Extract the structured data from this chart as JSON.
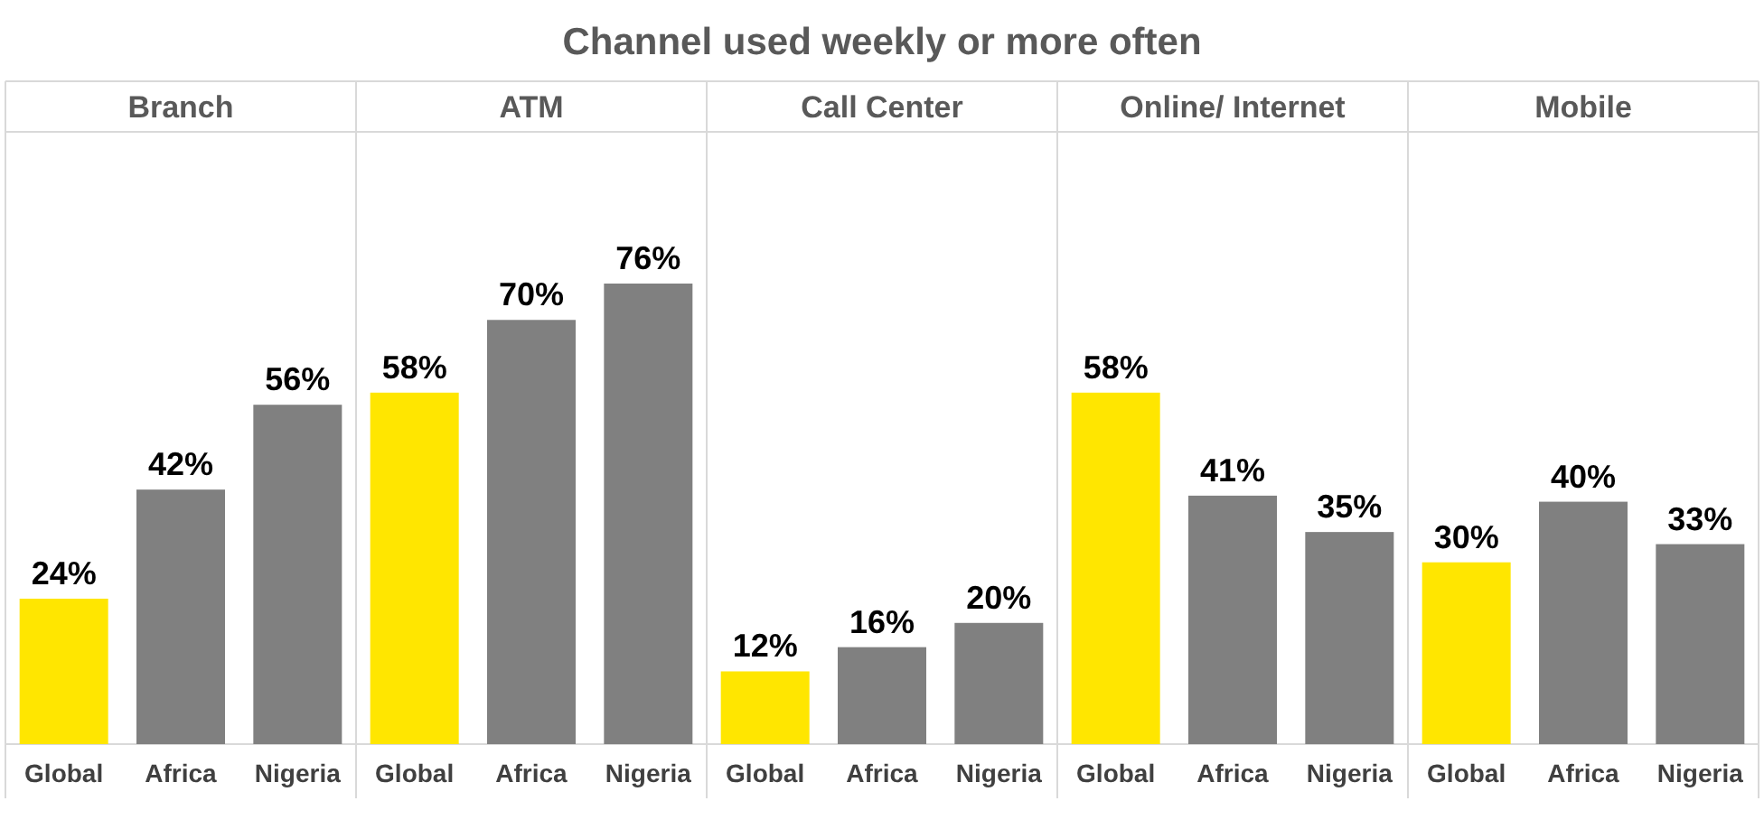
{
  "chart_data": {
    "type": "bar",
    "title": "Channel used weekly or more often",
    "annotations": [
      "Branch",
      "ATM",
      "Call Center",
      "Online/ Internet",
      "Mobile"
    ],
    "categories": [
      "Global",
      "Africa",
      "Nigeria",
      "Global",
      "Africa",
      "Nigeria",
      "Global",
      "Africa",
      "Nigeria",
      "Global",
      "Africa",
      "Nigeria",
      "Global",
      "Africa",
      "Nigeria"
    ],
    "values": [
      24,
      42,
      56,
      58,
      70,
      76,
      12,
      16,
      20,
      58,
      41,
      35,
      30,
      40,
      33
    ],
    "colors": [
      "#ffe600",
      "#808080",
      "#808080",
      "#ffe600",
      "#808080",
      "#808080",
      "#ffe600",
      "#808080",
      "#808080",
      "#ffe600",
      "#808080",
      "#808080",
      "#ffe600",
      "#808080",
      "#808080"
    ],
    "value_labels": [
      "24%",
      "42%",
      "56%",
      "58%",
      "70%",
      "76%",
      "12%",
      "16%",
      "20%",
      "58%",
      "41%",
      "35%",
      "30%",
      "40%",
      "33%"
    ]
  }
}
